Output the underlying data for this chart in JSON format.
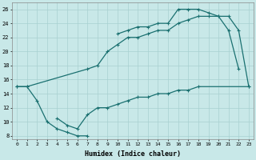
{
  "xlabel": "Humidex (Indice chaleur)",
  "xlim": [
    -0.5,
    23.5
  ],
  "ylim": [
    7.5,
    27
  ],
  "yticks": [
    8,
    10,
    12,
    14,
    16,
    18,
    20,
    22,
    24,
    26
  ],
  "xticks": [
    0,
    1,
    2,
    3,
    4,
    5,
    6,
    7,
    8,
    9,
    10,
    11,
    12,
    13,
    14,
    15,
    16,
    17,
    18,
    19,
    20,
    21,
    22,
    23
  ],
  "bg_color": "#c8e8e8",
  "line_color": "#1a7070",
  "grid_color": "#a8d0d0",
  "curve1_x": [
    0,
    1,
    2,
    3,
    4,
    5,
    6,
    7
  ],
  "curve1_y": [
    15,
    15,
    13,
    10,
    9,
    8.5,
    8,
    8
  ],
  "curve2_x": [
    10,
    11,
    12,
    13,
    14,
    15,
    16,
    17,
    18,
    19,
    20,
    21,
    22
  ],
  "curve2_y": [
    22.5,
    23,
    23.5,
    23.5,
    24,
    24,
    26,
    26,
    26,
    25.5,
    25,
    23,
    17.5
  ],
  "curve3_x": [
    0,
    1,
    7,
    8,
    9,
    10,
    11,
    12,
    13,
    14,
    15,
    16,
    17,
    18,
    19,
    20,
    21,
    22,
    23
  ],
  "curve3_y": [
    15,
    15,
    17.5,
    18,
    20,
    21,
    22,
    22,
    22.5,
    23,
    23,
    24,
    24.5,
    25,
    25,
    25,
    25,
    23,
    15
  ],
  "curve4_x": [
    4,
    5,
    6,
    7,
    8,
    9,
    10,
    11,
    12,
    13,
    14,
    15,
    16,
    17,
    18,
    23
  ],
  "curve4_y": [
    10.5,
    9.5,
    9,
    11,
    12,
    12,
    12.5,
    13,
    13.5,
    13.5,
    14,
    14,
    14.5,
    14.5,
    15,
    15
  ]
}
